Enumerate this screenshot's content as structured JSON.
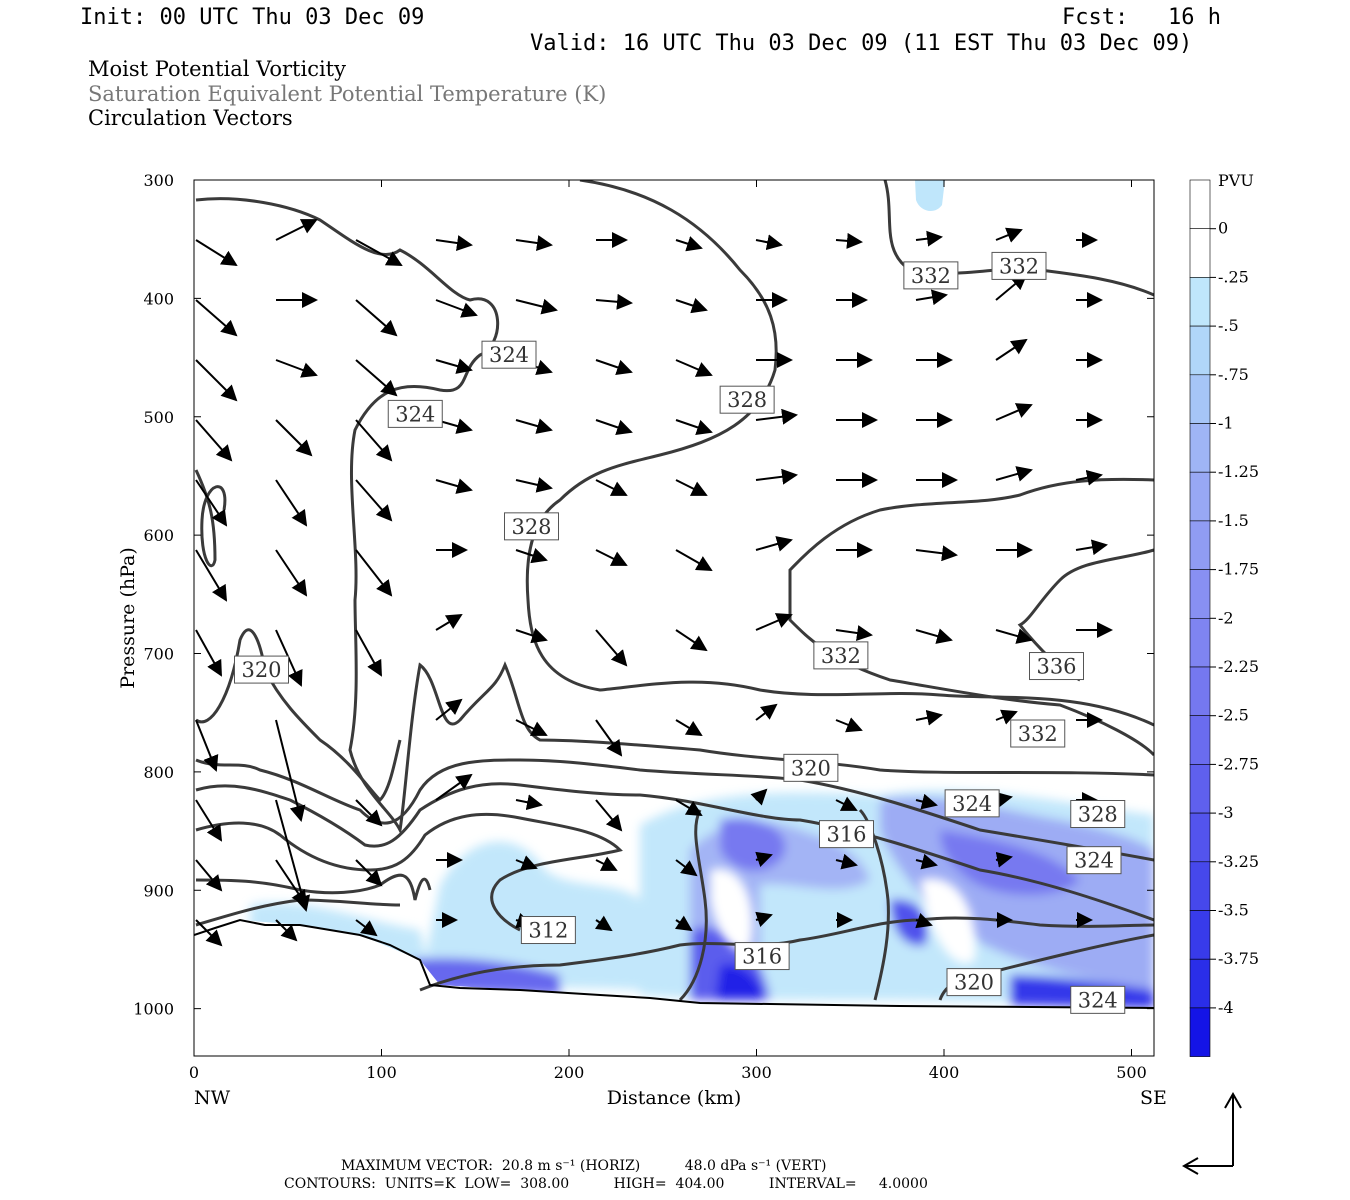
{
  "header": {
    "init": "Init: 00 UTC Thu 03 Dec 09",
    "fcst_label": "Fcst:",
    "fcst_value": "16 h",
    "valid": "Valid: 16 UTC Thu 03 Dec 09 (11 EST Thu 03 Dec 09)"
  },
  "fields": [
    "Moist Potential Vorticity",
    "Saturation Equivalent Potential Temperature (K)",
    "Circulation Vectors"
  ],
  "colors": {
    "contour": "#3a3a3a",
    "pv_light": "#bfe6fb",
    "pv_mid": "#8c9cf4",
    "pv_dark": "#3c46ee",
    "pv_darkest": "#0a14e6"
  },
  "chart_data": {
    "type": "cross-section",
    "xlabel": "Distance (km)",
    "ylabel": "Pressure (hPa)",
    "xlim": [
      0,
      512
    ],
    "ylim": [
      1040,
      300
    ],
    "x_ticks": [
      "0",
      "100",
      "200",
      "300",
      "400",
      "500"
    ],
    "x_tick_values": [
      0,
      100,
      200,
      300,
      400,
      500
    ],
    "y_ticks": [
      "300",
      "400",
      "500",
      "600",
      "700",
      "800",
      "900",
      "1000"
    ],
    "y_tick_values": [
      300,
      400,
      500,
      600,
      700,
      800,
      900,
      1000
    ],
    "left_end": "NW",
    "right_end": "SE",
    "colorbar": {
      "unit": "PVU",
      "labels": [
        "0",
        "-.25",
        "-.5",
        "-.75",
        "-1",
        "-1.25",
        "-1.5",
        "-1.75",
        "-2",
        "-2.25",
        "-2.5",
        "-2.75",
        "-3",
        "-3.25",
        "-3.5",
        "-3.75",
        "-4"
      ],
      "colors": [
        "#ffffff",
        "#ffffff",
        "#bfe6fb",
        "#b0d6f9",
        "#a6c5f7",
        "#9fb5f5",
        "#98a8f4",
        "#909cf3",
        "#8890f2",
        "#7f84f1",
        "#7578f0",
        "#6a6cef",
        "#5f60ee",
        "#5354ed",
        "#4648ec",
        "#383bea",
        "#2a2ee9",
        "#1414e6"
      ]
    },
    "contour_labels": [
      {
        "text": "324",
        "x": 168,
        "p": 448
      },
      {
        "text": "324",
        "x": 118,
        "p": 498
      },
      {
        "text": "328",
        "x": 295,
        "p": 486
      },
      {
        "text": "328",
        "x": 180,
        "p": 593
      },
      {
        "text": "332",
        "x": 393,
        "p": 381
      },
      {
        "text": "332",
        "x": 440,
        "p": 373
      },
      {
        "text": "320",
        "x": 36,
        "p": 714
      },
      {
        "text": "332",
        "x": 345,
        "p": 702
      },
      {
        "text": "336",
        "x": 460,
        "p": 711
      },
      {
        "text": "332",
        "x": 450,
        "p": 768
      },
      {
        "text": "320",
        "x": 329,
        "p": 797
      },
      {
        "text": "324",
        "x": 415,
        "p": 827
      },
      {
        "text": "328",
        "x": 482,
        "p": 836
      },
      {
        "text": "316",
        "x": 348,
        "p": 853
      },
      {
        "text": "324",
        "x": 480,
        "p": 875
      },
      {
        "text": "312",
        "x": 189,
        "p": 934
      },
      {
        "text": "316",
        "x": 303,
        "p": 956
      },
      {
        "text": "320",
        "x": 416,
        "p": 978
      },
      {
        "text": "324",
        "x": 482,
        "p": 993
      }
    ]
  },
  "footer": {
    "max_vector": "MAXIMUM VECTOR:  20.8 m s⁻¹ (HORIZ)          48.0 dPa s⁻¹ (VERT)",
    "contours": "CONTOURS:  UNITS=K  LOW=  308.00          HIGH=  404.00          INTERVAL=     4.0000"
  }
}
